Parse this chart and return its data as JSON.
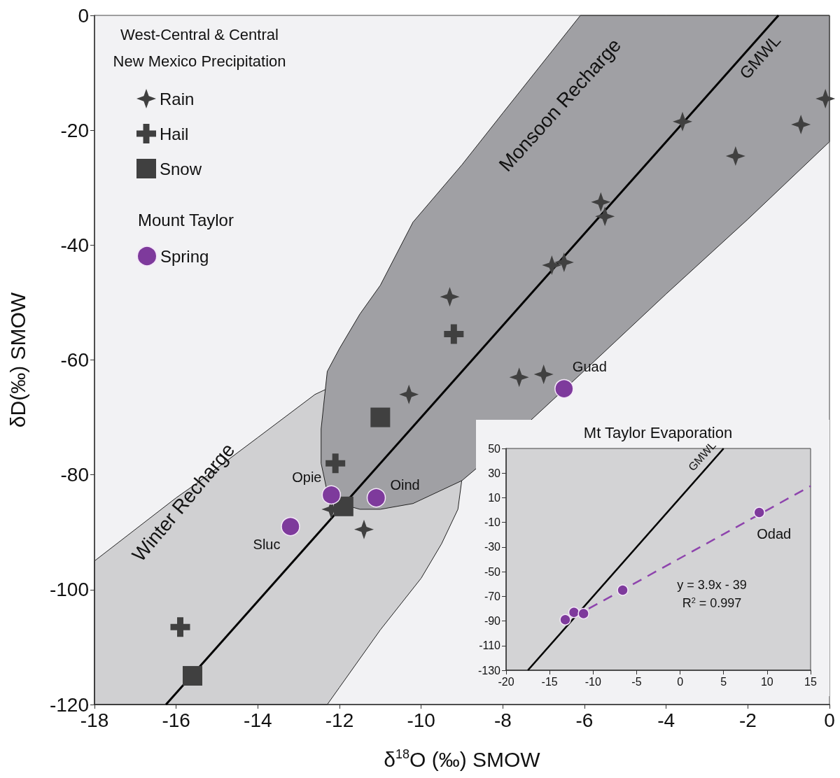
{
  "chart_data": [
    {
      "type": "scatter",
      "xlabel": "δ$^{18}$O (‰) SMOW",
      "ylabel": "δD(‰) SMOW",
      "xlim": [
        -18,
        0
      ],
      "xticks": [
        -18,
        -16,
        -14,
        -12,
        -10,
        -8,
        -6,
        -4,
        -2,
        0
      ],
      "ylim": [
        -120,
        0
      ],
      "yticks": [
        -120,
        -100,
        -80,
        -60,
        -40,
        -20,
        0
      ],
      "legend": "top left",
      "legend_title": "West-Central & Central New Mexico Precipitation",
      "series": [
        {
          "name": "GMWL",
          "type": "line",
          "color": "#000000",
          "marker": "none",
          "x": [
            -16.25,
            -1.25
          ],
          "values": [
            -120,
            0
          ]
        },
        {
          "name": "Rain",
          "color": "#404040",
          "marker": "star",
          "x": [
            -0.1,
            -0.7,
            -2.3,
            -3.6,
            -5.6,
            -5.5,
            -6.5,
            -6.8,
            -9.3,
            -7.6,
            -7,
            -10.3,
            -12.2,
            -11.4
          ],
          "values": [
            -14.5,
            -19,
            -24.5,
            -18.5,
            -32.5,
            -35,
            -43,
            -43.5,
            -49,
            -63,
            -62.5,
            -66,
            -86,
            -89.5
          ]
        },
        {
          "name": "Hail",
          "color": "#404040",
          "marker": "cross",
          "x": [
            -9.2,
            -12.1,
            -15.9
          ],
          "values": [
            -55.5,
            -78,
            -106.5
          ]
        },
        {
          "name": "Snow",
          "color": "#404040",
          "marker": "square",
          "x": [
            -11,
            -11.9,
            -15.6
          ],
          "values": [
            -70,
            -85.5,
            -115
          ]
        },
        {
          "name": "Spring",
          "color": "#7e3a9c",
          "marker": "circle",
          "x": [
            -6.5,
            -12.2,
            -11.1,
            -13.2
          ],
          "values": [
            -65,
            -83.5,
            -84,
            -89
          ]
        }
      ],
      "annotations": [
        "Mount Taylor",
        "Winter Recharge",
        "Monsoon Recharge",
        {
          "text": "Guad",
          "x": -6.5,
          "y": -65
        },
        {
          "text": "Opie",
          "x": -12.2,
          "y": -83.5
        },
        {
          "text": "Oind",
          "x": -11.1,
          "y": -84
        },
        {
          "text": "Sluc",
          "x": -13.2,
          "y": -89
        }
      ]
    },
    {
      "type": "scatter",
      "title": "Mt Taylor Evaporation",
      "xlim": [
        -20,
        15
      ],
      "xticks": [
        -20,
        -15,
        -10,
        -5,
        0,
        5,
        10,
        15
      ],
      "ylim": [
        -130,
        50
      ],
      "yticks": [
        -130,
        -110,
        -90,
        -70,
        -50,
        -30,
        -10,
        10,
        30,
        50
      ],
      "series": [
        {
          "name": "GMWL",
          "type": "line",
          "color": "#000000",
          "marker": "none",
          "x": [
            -17.5,
            5
          ],
          "values": [
            -130,
            50
          ]
        },
        {
          "type": "line",
          "color": "#8e44ad",
          "marker": "none",
          "line_style": "dashed",
          "x": [
            -10.5,
            15
          ],
          "values": [
            -80,
            19.5
          ]
        },
        {
          "color": "#7e3a9c",
          "marker": "circle",
          "x": [
            -13.2,
            -12.2,
            -11.1,
            -6.6,
            9.1
          ],
          "values": [
            -89,
            -83,
            -84,
            -65,
            -2
          ]
        }
      ],
      "annotations": [
        {
          "text": "Odad",
          "x": 9.1,
          "y": -2
        },
        "y = 3.9x - 39",
        "R$^{2}$ = 0.997"
      ]
    }
  ]
}
